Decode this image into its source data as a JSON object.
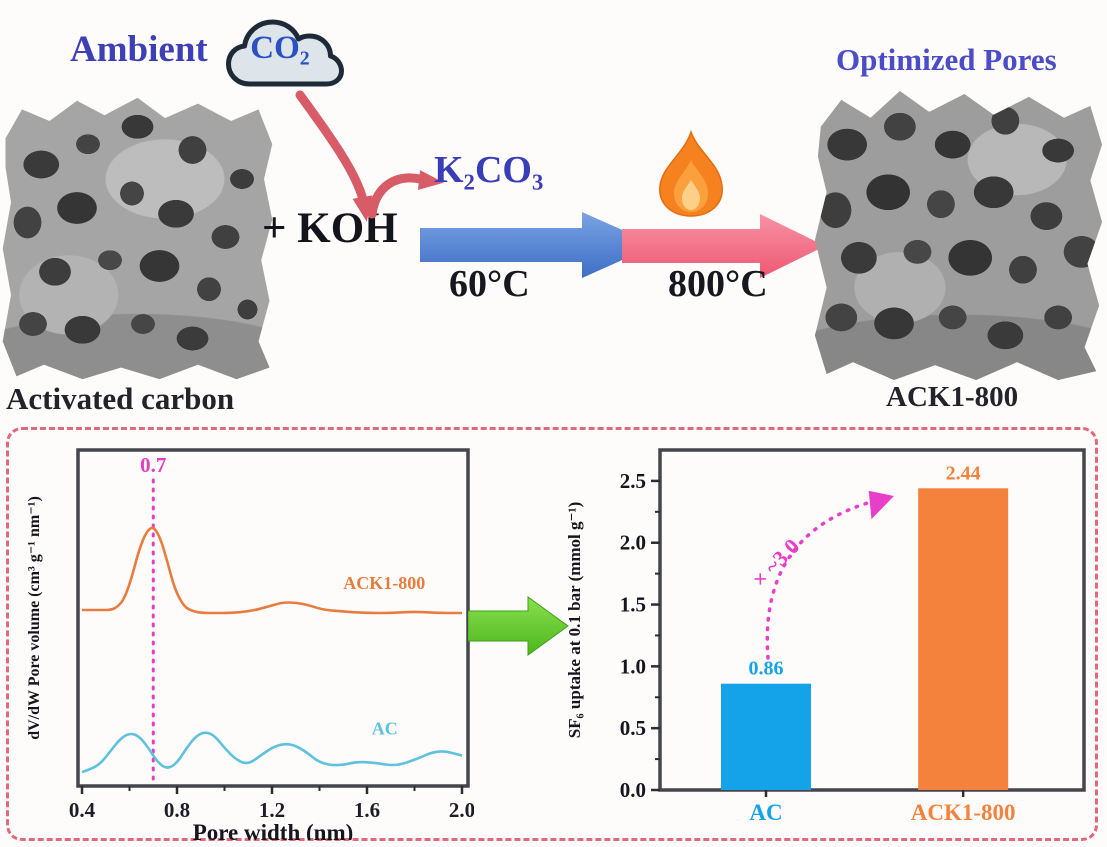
{
  "scheme": {
    "ambient": "Ambient",
    "co2": "CO₂",
    "koh": "+ KOH",
    "k2co3": "K₂CO₃",
    "step1_temp": "60°C",
    "step2_temp": "800°C",
    "optimized_pores": "Optimized Pores",
    "activated_carbon": "Activated carbon",
    "product": "ACK1-800",
    "colors": {
      "scheme_blue_text": "#3c3fb5",
      "co2_text": "#2a50c2",
      "dark_text": "#17171f",
      "red_arrow": "#d85b68",
      "blue_arrow": "#4a77cc",
      "pink_arrow": "#f06a84",
      "green_arrow": "#5fc52e",
      "flame_orange": "#f5821f",
      "panel_border": "#e0697b"
    }
  },
  "chart_data": [
    {
      "type": "line",
      "xlabel": "Pore width (nm)",
      "ylabel": "dV/dW Pore volume (cm³ g⁻¹ nm⁻¹)",
      "xlim": [
        0.4,
        2.0
      ],
      "x_ticks": [
        "0.4",
        "0.8",
        "1.2",
        "1.6",
        "2.0"
      ],
      "x_minor_ticks": [
        0.6,
        1.0,
        1.4,
        1.8
      ],
      "grid": false,
      "peak_annotation": {
        "text": "0.7",
        "x": 0.7,
        "color": "#e23fc3"
      },
      "series": [
        {
          "name": "ACK1-800",
          "color": "#e87c3e",
          "label_at": {
            "x": 1.5,
            "y": 0.63
          },
          "x": [
            0.4,
            0.44,
            0.48,
            0.52,
            0.55,
            0.58,
            0.61,
            0.64,
            0.67,
            0.7,
            0.73,
            0.76,
            0.79,
            0.83,
            0.87,
            0.91,
            0.96,
            1.02,
            1.1,
            1.18,
            1.24,
            1.3,
            1.36,
            1.42,
            1.5,
            1.6,
            1.7,
            1.8,
            1.9,
            2.0
          ],
          "y": [
            0.56,
            0.56,
            0.56,
            0.56,
            0.57,
            0.6,
            0.67,
            0.76,
            0.82,
            0.84,
            0.8,
            0.72,
            0.63,
            0.57,
            0.555,
            0.55,
            0.55,
            0.55,
            0.555,
            0.57,
            0.585,
            0.585,
            0.575,
            0.56,
            0.555,
            0.55,
            0.55,
            0.555,
            0.55,
            0.55
          ]
        },
        {
          "name": "AC",
          "color": "#5ec1de",
          "label_at": {
            "x": 1.62,
            "y": 0.145
          },
          "x": [
            0.4,
            0.44,
            0.48,
            0.52,
            0.56,
            0.6,
            0.64,
            0.68,
            0.72,
            0.76,
            0.8,
            0.84,
            0.88,
            0.92,
            0.96,
            1.0,
            1.05,
            1.1,
            1.16,
            1.22,
            1.28,
            1.34,
            1.4,
            1.48,
            1.56,
            1.64,
            1.72,
            1.8,
            1.9,
            2.0
          ],
          "y": [
            0.02,
            0.03,
            0.05,
            0.09,
            0.13,
            0.15,
            0.14,
            0.1,
            0.05,
            0.03,
            0.05,
            0.1,
            0.14,
            0.155,
            0.14,
            0.1,
            0.06,
            0.045,
            0.08,
            0.11,
            0.115,
            0.09,
            0.05,
            0.04,
            0.055,
            0.05,
            0.04,
            0.06,
            0.095,
            0.075
          ]
        }
      ]
    },
    {
      "type": "bar",
      "ylabel": "SF₆ uptake at 0.1 bar (mmol g⁻¹)",
      "categories": [
        "AC",
        "ACK1-800"
      ],
      "values": [
        0.86,
        2.44
      ],
      "value_labels": [
        "0.86",
        "2.44"
      ],
      "bar_colors": [
        "#14a3e8",
        "#f5823c"
      ],
      "ylim": [
        0,
        2.75
      ],
      "y_ticks": [
        "0.0",
        "0.5",
        "1.0",
        "1.5",
        "2.0",
        "2.5"
      ],
      "y_minor_ticks": [
        0.25,
        0.75,
        1.25,
        1.75,
        2.25
      ],
      "grid": false,
      "multiplier_annotation": {
        "text": "× ~3.0",
        "color": "#e83fc9"
      }
    }
  ]
}
